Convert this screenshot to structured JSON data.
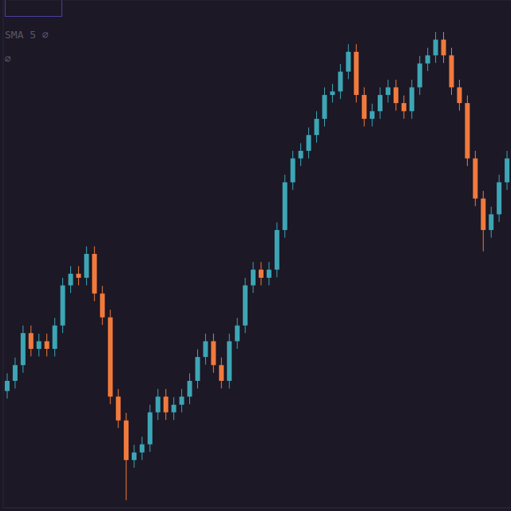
{
  "chart_data": {
    "type": "candlestick",
    "annotations": [
      "SMA 5 ∅",
      "∅"
    ],
    "categories": [
      null,
      null,
      null,
      null,
      null,
      null,
      null,
      null,
      null,
      null,
      null,
      null,
      null,
      null,
      null,
      null,
      null,
      null,
      null,
      null,
      null,
      null,
      null,
      null,
      null,
      null,
      null,
      null,
      null,
      null,
      null,
      null,
      null,
      null,
      null,
      null,
      null,
      null,
      null,
      null,
      null,
      null,
      null,
      null,
      null,
      null,
      null,
      null,
      null,
      null,
      null,
      null,
      null,
      null,
      null,
      null,
      null,
      null,
      null,
      null,
      null,
      null,
      null,
      null
    ],
    "open": [
      23,
      25,
      28.1,
      34.4,
      31.3,
      32.8,
      31.3,
      35.9,
      43.8,
      46.1,
      45.3,
      50,
      42.2,
      37.5,
      21.9,
      17.2,
      9.4,
      10.9,
      12.5,
      18.8,
      21.9,
      18.8,
      20.3,
      21.9,
      25,
      29.7,
      32.8,
      28.1,
      25,
      32.8,
      35.9,
      43.8,
      46.9,
      45.3,
      46.9,
      54.7,
      64.1,
      68.8,
      70.3,
      73.4,
      76.6,
      81.3,
      82,
      85.9,
      89.8,
      81.3,
      76.6,
      78.1,
      81.3,
      82.8,
      79.7,
      78.1,
      82.8,
      87.5,
      89.1,
      92.2,
      89.1,
      82.8,
      79.7,
      68.8,
      60.9,
      54.7,
      57.8,
      64.1
    ],
    "high": [
      26.5,
      29.6,
      35.9,
      35.9,
      34.3,
      34.3,
      37.4,
      45.3,
      47.6,
      47.6,
      51.5,
      51.5,
      43.7,
      39,
      23.4,
      18.7,
      12.4,
      14,
      20.3,
      23.4,
      23.4,
      21.8,
      23.4,
      26.5,
      31.2,
      34.3,
      34.3,
      29.6,
      34.3,
      37.4,
      45.3,
      48.4,
      48.4,
      48.4,
      56.2,
      65.6,
      70.3,
      71.8,
      74.9,
      78.1,
      82.8,
      83.5,
      87.4,
      91.3,
      91.3,
      82.8,
      79.6,
      82.8,
      84.3,
      84.3,
      81.2,
      84.3,
      89,
      90.6,
      93.7,
      93.7,
      90.6,
      84.3,
      81.2,
      70.3,
      62.4,
      59.3,
      65.6,
      70.3
    ],
    "low": [
      21.5,
      23.5,
      26.6,
      29.8,
      29.8,
      29.8,
      29.8,
      34.4,
      42.3,
      43.8,
      43.8,
      40.7,
      36,
      20.4,
      15.7,
      1.5,
      7.9,
      9.4,
      11,
      17.3,
      17.3,
      17.3,
      18.8,
      20.4,
      23.5,
      28.2,
      26.6,
      23.5,
      23.5,
      31.3,
      34.4,
      42.3,
      43.8,
      43.8,
      45.4,
      53.2,
      62.6,
      67.3,
      68.8,
      71.9,
      75.1,
      79.8,
      80.5,
      84.4,
      79.8,
      75.1,
      75.1,
      76.6,
      79.8,
      78.2,
      76.6,
      76.6,
      81.3,
      86,
      87.6,
      87.6,
      81.3,
      78.2,
      67.3,
      59.4,
      50.5,
      53.2,
      56.3,
      62.6
    ],
    "close": [
      25,
      28.1,
      34.4,
      31.3,
      32.8,
      31.3,
      35.9,
      43.8,
      46.1,
      45.3,
      50,
      42.2,
      37.5,
      21.9,
      17.2,
      9.4,
      10.9,
      12.5,
      18.8,
      21.9,
      18.8,
      20.3,
      21.9,
      25,
      29.7,
      32.8,
      28.1,
      25,
      32.8,
      35.9,
      43.8,
      46.9,
      45.3,
      46.9,
      54.7,
      64.1,
      68.8,
      70.3,
      73.4,
      76.6,
      81.3,
      82,
      85.9,
      89.8,
      81.3,
      76.6,
      78.1,
      81.3,
      82.8,
      79.7,
      78.1,
      82.8,
      87.5,
      89.1,
      92.2,
      89.1,
      82.8,
      79.7,
      68.8,
      60.9,
      54.7,
      57.8,
      64.1,
      68.8
    ],
    "colors": [
      "#3da5b4",
      "#3da5b4",
      "#3da5b4",
      "#f07a3c",
      "#3da5b4",
      "#f07a3c",
      "#3da5b4",
      "#3da5b4",
      "#3da5b4",
      "#f07a3c",
      "#3da5b4",
      "#f07a3c",
      "#f07a3c",
      "#f07a3c",
      "#f07a3c",
      "#f07a3c",
      "#3da5b4",
      "#3da5b4",
      "#3da5b4",
      "#3da5b4",
      "#f07a3c",
      "#3da5b4",
      "#3da5b4",
      "#3da5b4",
      "#3da5b4",
      "#3da5b4",
      "#f07a3c",
      "#f07a3c",
      "#3da5b4",
      "#3da5b4",
      "#3da5b4",
      "#3da5b4",
      "#f07a3c",
      "#3da5b4",
      "#3da5b4",
      "#3da5b4",
      "#3da5b4",
      "#3da5b4",
      "#3da5b4",
      "#3da5b4",
      "#3da5b4",
      "#3da5b4",
      "#3da5b4",
      "#3da5b4",
      "#f07a3c",
      "#f07a3c",
      "#3da5b4",
      "#3da5b4",
      "#3da5b4",
      "#f07a3c",
      "#f07a3c",
      "#3da5b4",
      "#3da5b4",
      "#3da5b4",
      "#3da5b4",
      "#f07a3c",
      "#f07a3c",
      "#f07a3c",
      "#f07a3c",
      "#f07a3c",
      "#f07a3c",
      "#3da5b4",
      "#3da5b4",
      "#3da5b4"
    ],
    "ylim": [
      0,
      100
    ],
    "yticks": [
      0,
      10,
      20,
      30,
      40,
      50,
      60,
      70,
      80,
      90,
      100
    ],
    "grid": true,
    "tick_labels": false
  }
}
